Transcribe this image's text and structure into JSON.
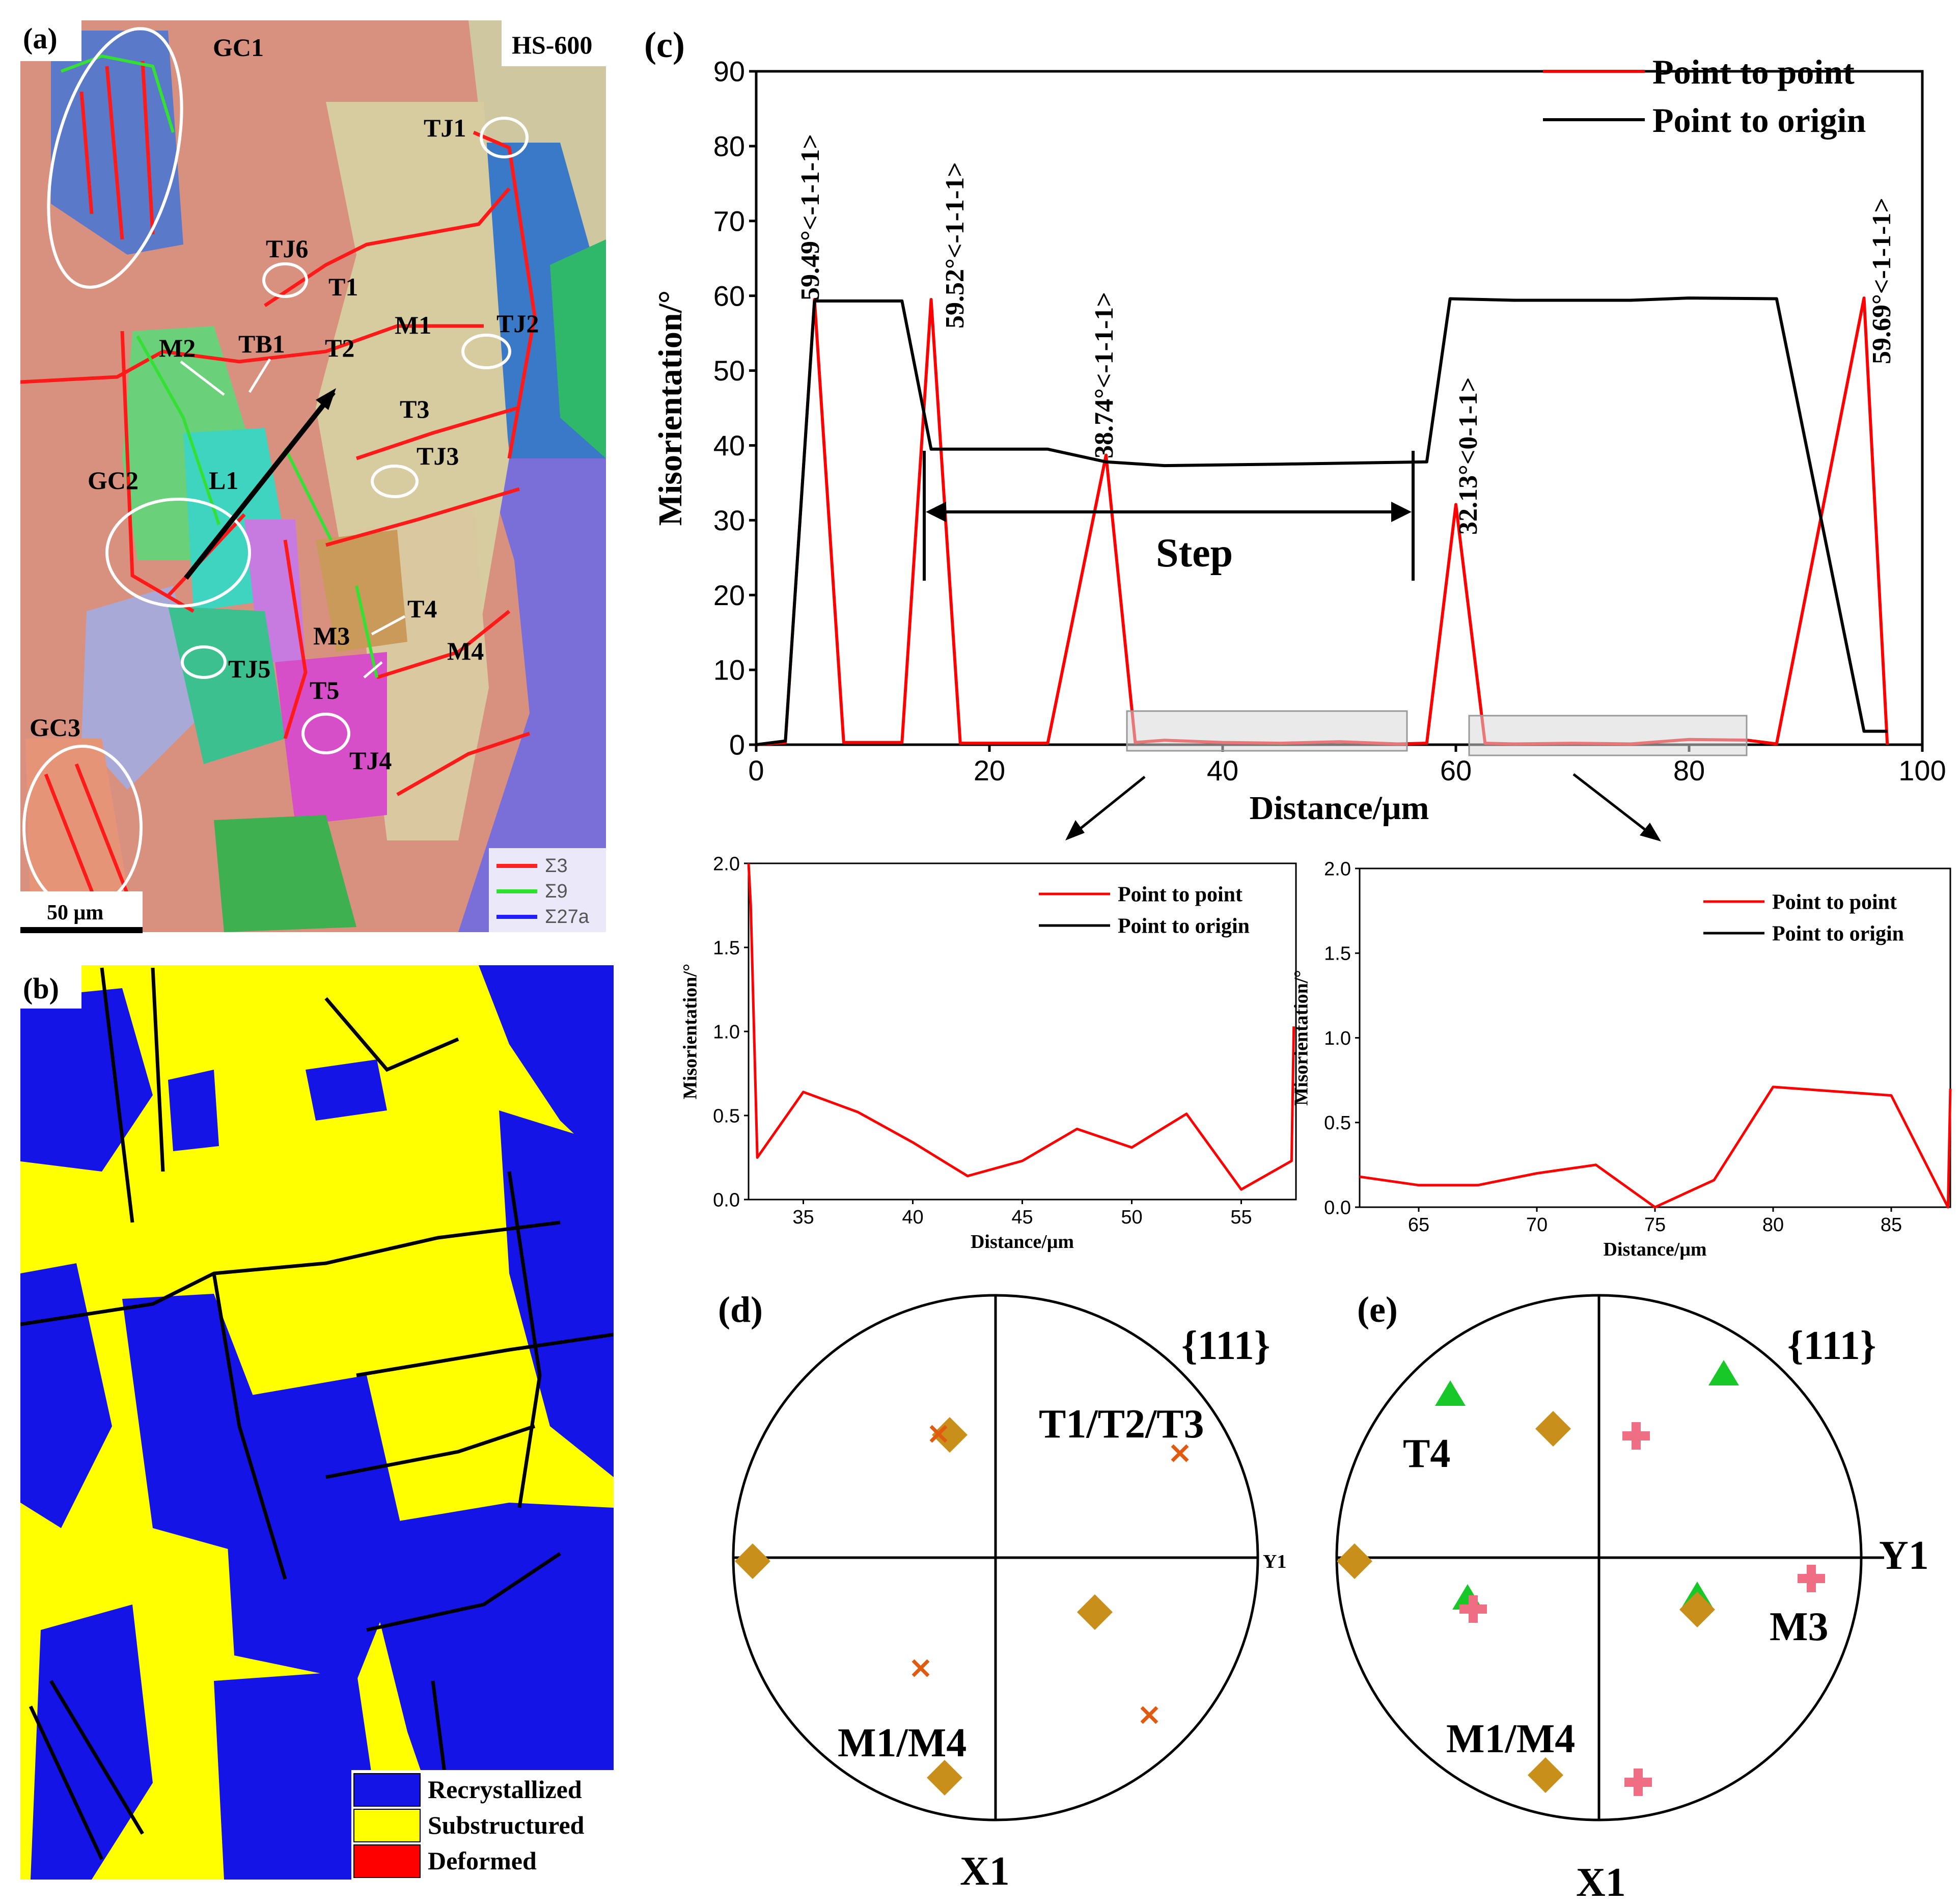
{
  "panel_a": {
    "label": "(a)",
    "tag": "HS-600",
    "scalebar": "50 μm",
    "legend": [
      {
        "name": "Σ3",
        "color": "#ff2020"
      },
      {
        "name": "Σ9",
        "color": "#30e030"
      },
      {
        "name": "Σ27a",
        "color": "#2020ff"
      }
    ],
    "annotations": [
      "GC1",
      "GC2",
      "GC3",
      "TJ1",
      "TJ2",
      "TJ3",
      "TJ4",
      "TJ5",
      "TJ6",
      "T1",
      "T2",
      "T3",
      "T4",
      "T5",
      "M1",
      "M2",
      "M3",
      "M4",
      "TB1",
      "L1"
    ]
  },
  "panel_b": {
    "label": "(b)",
    "legend": [
      {
        "name": "Recrystallized",
        "color": "#1414e6"
      },
      {
        "name": "Substructured",
        "color": "#ffff00"
      },
      {
        "name": "Deformed",
        "color": "#ff0000"
      }
    ]
  },
  "chart_data": [
    {
      "panel": "(c)",
      "type": "line",
      "xlabel": "Distance/μm",
      "ylabel": "Misorientation/°",
      "xlim": [
        0,
        100
      ],
      "ylim": [
        0,
        90
      ],
      "xticks": [
        0,
        20,
        40,
        60,
        80,
        100
      ],
      "yticks": [
        0,
        10,
        20,
        30,
        40,
        50,
        60,
        70,
        80,
        90
      ],
      "legend_position": "top-right",
      "series": [
        {
          "name": "Point to point",
          "color": "#ff0000",
          "x": [
            0,
            2.5,
            5,
            7.5,
            12.5,
            15,
            17.5,
            25,
            30,
            32.5,
            35,
            40,
            45,
            50,
            55,
            57.5,
            60,
            62.5,
            65,
            70,
            75,
            80,
            85,
            87.5,
            95,
            97
          ],
          "y": [
            0,
            0.3,
            59.5,
            0.3,
            0.3,
            59.5,
            0.2,
            0.2,
            38.7,
            0.3,
            0.6,
            0.3,
            0.2,
            0.4,
            0.1,
            0.2,
            32.1,
            0.2,
            0.1,
            0.2,
            0.1,
            0.7,
            0.6,
            0.1,
            59.7,
            0
          ]
        },
        {
          "name": "Point to origin",
          "color": "#000000",
          "x": [
            0,
            2.5,
            5,
            12.5,
            15,
            25,
            30,
            35,
            45,
            57.5,
            59.5,
            65,
            75,
            80,
            87.5,
            95,
            97
          ],
          "y": [
            0,
            0.5,
            59.3,
            59.3,
            39.5,
            39.5,
            37.8,
            37.3,
            37.5,
            37.8,
            59.6,
            59.4,
            59.4,
            59.7,
            59.6,
            1.8,
            1.8
          ]
        }
      ],
      "annotations": [
        "59.49°<-1-1-1>",
        "59.52°<-1-1-1>",
        "38.74°<-1-1-1>",
        "32.13°<0-1-1>",
        "59.69°<-1-1-1>",
        "Step"
      ]
    },
    {
      "panel": "(c) inset left",
      "type": "line",
      "xlabel": "Distance/μm",
      "ylabel": "Misorientation/°",
      "xlim": [
        32.5,
        57.5
      ],
      "ylim": [
        0,
        2.0
      ],
      "xticks": [
        35,
        40,
        45,
        50,
        55
      ],
      "yticks": [
        "0.0",
        "0.5",
        "1.0",
        "1.5",
        "2.0"
      ],
      "legend_position": "top-right",
      "series": [
        {
          "name": "Point to point",
          "color": "#ff0000",
          "x": [
            32.5,
            32.6,
            32.9,
            35,
            37.5,
            40,
            42.5,
            45,
            47.5,
            50,
            52.5,
            55,
            57.3,
            57.4
          ],
          "y": [
            2.0,
            1.75,
            0.25,
            0.64,
            0.52,
            0.34,
            0.14,
            0.23,
            0.42,
            0.31,
            0.51,
            0.06,
            0.23,
            1.03
          ]
        },
        {
          "name": "Point to origin",
          "color": "#000000",
          "x": [],
          "y": []
        }
      ]
    },
    {
      "panel": "(c) inset right",
      "type": "line",
      "xlabel": "Distance/μm",
      "ylabel": "Misorientation/°",
      "xlim": [
        62.5,
        87.5
      ],
      "ylim": [
        0,
        2.0
      ],
      "xticks": [
        65,
        70,
        75,
        80,
        85
      ],
      "yticks": [
        "0.0",
        "0.5",
        "1.0",
        "1.5",
        "2.0"
      ],
      "legend_position": "top-right",
      "series": [
        {
          "name": "Point to point",
          "color": "#ff0000",
          "x": [
            62.5,
            65,
            67.5,
            70,
            72.5,
            75,
            77.5,
            80,
            85,
            87.4,
            87.5
          ],
          "y": [
            0.18,
            0.13,
            0.13,
            0.2,
            0.25,
            0.0,
            0.16,
            0.71,
            0.66,
            0.0,
            0.7
          ]
        },
        {
          "name": "Point to origin",
          "color": "#000000",
          "x": [],
          "y": []
        }
      ]
    }
  ],
  "panel_d": {
    "label": "(d)",
    "plane": "{111}",
    "x_axis": "X1",
    "y_axis": "Y1",
    "group_labels": [
      "T1/T2/T3",
      "M1/M4"
    ]
  },
  "panel_e": {
    "label": "(e)",
    "plane": "{111}",
    "x_axis": "X1",
    "y_axis": "Y1",
    "group_labels": [
      "T4",
      "M3",
      "M1/M4"
    ]
  }
}
